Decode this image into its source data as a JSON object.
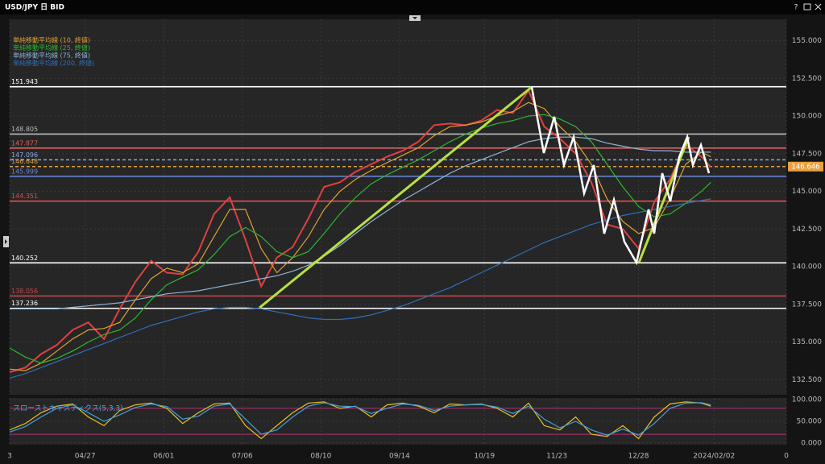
{
  "window": {
    "title": "USD/JPY 日 BID",
    "help": "?"
  },
  "chart_data": [
    {
      "type": "line",
      "x": [
        0,
        5,
        10,
        15,
        20,
        25,
        30,
        35,
        40,
        45,
        50,
        55,
        60,
        65,
        70,
        75,
        80,
        85,
        90,
        95,
        100,
        105,
        110,
        115,
        120,
        125,
        130,
        135,
        140,
        145,
        150,
        155,
        160,
        165,
        170,
        175,
        180,
        185,
        190,
        195,
        200,
        205,
        210,
        215,
        220,
        223
      ],
      "xlim": [
        0,
        247
      ],
      "xticks": [
        {
          "value": 0,
          "label": "3"
        },
        {
          "value": 24,
          "label": "04/27"
        },
        {
          "value": 49,
          "label": "06/01"
        },
        {
          "value": 74,
          "label": "07/06"
        },
        {
          "value": 99,
          "label": "08/10"
        },
        {
          "value": 124,
          "label": "09/14"
        },
        {
          "value": 151,
          "label": "10/19"
        },
        {
          "value": 174,
          "label": "11/23"
        },
        {
          "value": 200,
          "label": "12/28"
        },
        {
          "value": 224,
          "label": "2024/02/02"
        },
        {
          "value": 247,
          "label": "0"
        }
      ],
      "ylim": [
        131.5,
        156.1
      ],
      "yticks": [
        {
          "value": 132.5,
          "label": "132.500"
        },
        {
          "value": 135,
          "label": "135.000"
        },
        {
          "value": 137.5,
          "label": "137.500"
        },
        {
          "value": 140,
          "label": "140.000"
        },
        {
          "value": 142.5,
          "label": "142.500"
        },
        {
          "value": 145,
          "label": "145.000"
        },
        {
          "value": 147.5,
          "label": "147.500"
        },
        {
          "value": 150,
          "label": "150.000"
        },
        {
          "value": 152.5,
          "label": "152.500"
        },
        {
          "value": 155,
          "label": "155.000"
        }
      ],
      "grid": true,
      "series": [
        {
          "color": "#e04040",
          "values": [
            133.0,
            133.3,
            134.2,
            134.8,
            135.8,
            136.3,
            135.2,
            137.2,
            139.0,
            140.4,
            139.6,
            139.5,
            141.0,
            143.5,
            144.6,
            141.8,
            138.7,
            140.6,
            141.3,
            143.2,
            145.3,
            145.6,
            146.3,
            146.8,
            147.3,
            147.7,
            148.3,
            149.4,
            149.5,
            149.4,
            149.7,
            150.4,
            150.2,
            151.7,
            149.3,
            148.5,
            147.5,
            145.6,
            142.8,
            142.5,
            141.2,
            144.3,
            145.8,
            148.1,
            147.3,
            146.6
          ]
        },
        {
          "name": "単純移動平均線 (10, 終値)",
          "color": "#e0a030",
          "values": [
            133.2,
            133.1,
            133.6,
            134.4,
            135.2,
            135.8,
            135.9,
            136.3,
            137.8,
            139.2,
            139.9,
            139.6,
            140.2,
            142.0,
            143.8,
            143.8,
            141.2,
            139.6,
            140.6,
            142.0,
            143.8,
            145.0,
            145.8,
            146.4,
            146.9,
            147.4,
            147.9,
            148.7,
            149.3,
            149.4,
            149.6,
            150.0,
            150.3,
            150.9,
            150.5,
            149.3,
            148.3,
            146.8,
            144.5,
            143.0,
            142.2,
            142.6,
            144.5,
            146.8,
            147.6,
            147.3
          ]
        },
        {
          "name": "単純移動平均線 (25, 終値)",
          "color": "#2db82d",
          "values": [
            134.6,
            134.0,
            133.6,
            133.9,
            134.4,
            135.0,
            135.5,
            135.8,
            136.6,
            137.8,
            138.8,
            139.3,
            139.8,
            140.8,
            142.0,
            142.6,
            142.0,
            141.0,
            140.6,
            141.0,
            142.2,
            143.5,
            144.6,
            145.5,
            146.1,
            146.6,
            147.1,
            147.7,
            148.3,
            148.8,
            149.2,
            149.5,
            149.7,
            150.0,
            150.1,
            149.8,
            149.3,
            148.3,
            146.8,
            145.3,
            144.0,
            143.3,
            143.5,
            144.2,
            145.0,
            145.6
          ]
        },
        {
          "name": "単純移動平均線 (75, 終値)",
          "color": "#8db4d9",
          "values": [
            137.2,
            137.2,
            137.2,
            137.2,
            137.3,
            137.4,
            137.5,
            137.6,
            137.8,
            138.0,
            138.2,
            138.3,
            138.4,
            138.6,
            138.8,
            139.0,
            139.2,
            139.4,
            139.7,
            140.1,
            140.7,
            141.4,
            142.2,
            143.0,
            143.7,
            144.4,
            145.0,
            145.6,
            146.2,
            146.7,
            147.1,
            147.5,
            147.9,
            148.3,
            148.5,
            148.6,
            148.6,
            148.5,
            148.2,
            148.0,
            147.8,
            147.7,
            147.7,
            147.6,
            147.6,
            147.6
          ]
        },
        {
          "name": "単純移動平均線 (200, 終値)",
          "color": "#2f6fb8",
          "values": [
            132.6,
            132.9,
            133.3,
            133.7,
            134.1,
            134.5,
            134.9,
            135.3,
            135.7,
            136.1,
            136.4,
            136.7,
            137.0,
            137.2,
            137.3,
            137.3,
            137.2,
            137.0,
            136.8,
            136.6,
            136.5,
            136.5,
            136.6,
            136.8,
            137.1,
            137.4,
            137.8,
            138.2,
            138.6,
            139.1,
            139.6,
            140.1,
            140.6,
            141.1,
            141.6,
            142.0,
            142.4,
            142.8,
            143.1,
            143.4,
            143.6,
            143.8,
            144.0,
            144.2,
            144.4,
            144.5
          ]
        }
      ],
      "levels": [
        {
          "value": 151.943,
          "color": "#ffffff"
        },
        {
          "value": 148.805,
          "color": "#bbbbbb"
        },
        {
          "value": 147.877,
          "color": "#e06060"
        },
        {
          "value": 147.096,
          "color": "#8aa8e0"
        },
        {
          "value": 146.648,
          "color": "#e0a040"
        },
        {
          "value": 145.999,
          "color": "#6a8ad8"
        },
        {
          "value": 144.351,
          "color": "#e05050"
        },
        {
          "value": 140.252,
          "color": "#ffffff"
        },
        {
          "value": 138.056,
          "color": "#c04848"
        },
        {
          "value": 137.236,
          "color": "#ffffff"
        }
      ],
      "current_price": {
        "value": 146.646,
        "color": "#e8a040"
      }
    },
    {
      "type": "line",
      "title": "スローストキャスティクス(5,3,3)",
      "x": [
        0,
        5,
        10,
        15,
        20,
        25,
        30,
        35,
        40,
        45,
        50,
        55,
        60,
        65,
        70,
        75,
        80,
        85,
        90,
        95,
        100,
        105,
        110,
        115,
        120,
        125,
        130,
        135,
        140,
        145,
        150,
        155,
        160,
        165,
        170,
        175,
        180,
        185,
        190,
        195,
        200,
        205,
        210,
        215,
        220,
        223
      ],
      "xlim": [
        0,
        247
      ],
      "xticks": [
        {
          "value": 0,
          "label": "3"
        },
        {
          "value": 24,
          "label": "04/27"
        },
        {
          "value": 49,
          "label": "06/01"
        },
        {
          "value": 74,
          "label": "07/06"
        },
        {
          "value": 99,
          "label": "08/10"
        },
        {
          "value": 124,
          "label": "09/14"
        },
        {
          "value": 151,
          "label": "10/19"
        },
        {
          "value": 174,
          "label": "11/23"
        },
        {
          "value": 200,
          "label": "12/28"
        },
        {
          "value": 224,
          "label": "2024/02/02"
        },
        {
          "value": 247,
          "label": "0"
        }
      ],
      "ylim": [
        -4,
        104
      ],
      "yticks": [
        {
          "value": 0,
          "label": "0.000"
        },
        {
          "value": 50,
          "label": "50.000"
        },
        {
          "value": 100,
          "label": "100.000"
        }
      ],
      "series": [
        {
          "color": "#e8c020",
          "values": [
            30,
            45,
            70,
            85,
            90,
            60,
            40,
            75,
            88,
            92,
            80,
            45,
            70,
            90,
            92,
            40,
            10,
            40,
            70,
            92,
            95,
            80,
            85,
            60,
            88,
            92,
            85,
            70,
            90,
            88,
            90,
            80,
            60,
            92,
            40,
            30,
            60,
            20,
            15,
            40,
            10,
            60,
            90,
            95,
            92,
            85
          ]
        },
        {
          "color": "#3fa0e0",
          "values": [
            25,
            38,
            60,
            80,
            88,
            70,
            50,
            65,
            82,
            90,
            84,
            55,
            62,
            85,
            90,
            55,
            20,
            30,
            60,
            85,
            93,
            85,
            84,
            68,
            80,
            90,
            87,
            75,
            85,
            88,
            89,
            83,
            68,
            85,
            55,
            35,
            50,
            30,
            18,
            32,
            18,
            45,
            80,
            92,
            93,
            88
          ]
        }
      ],
      "levels": [
        {
          "value": 80,
          "color": "#b03070"
        },
        {
          "value": 20,
          "color": "#b03070"
        }
      ]
    }
  ]
}
